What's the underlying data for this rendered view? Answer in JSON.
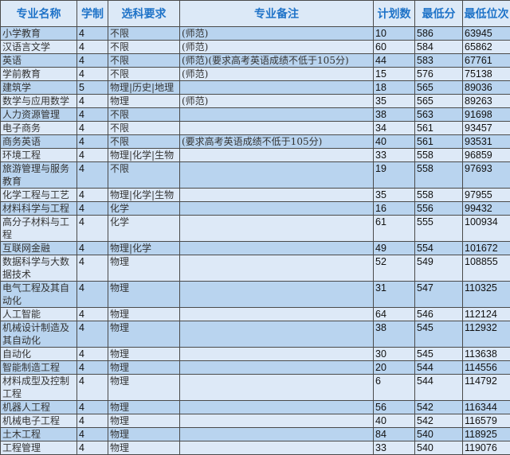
{
  "headers": [
    "专业名称",
    "学制",
    "选科要求",
    "专业备注",
    "计划数",
    "最低分",
    "最低位次"
  ],
  "colors": {
    "header_text": "#1f73c8",
    "header_bg": "#dce9f7",
    "row_dark": "#b9d4ef",
    "row_light": "#dde9f7",
    "border": "#4a4a4a"
  },
  "rows": [
    {
      "name": "小学教育",
      "years": "4",
      "subjects": "不限",
      "note": "(师范)",
      "plan": "10",
      "min_score": "586",
      "min_rank": "63945"
    },
    {
      "name": "汉语言文学",
      "years": "4",
      "subjects": "不限",
      "note": "(师范)",
      "plan": "60",
      "min_score": "584",
      "min_rank": "65862"
    },
    {
      "name": "英语",
      "years": "4",
      "subjects": "不限",
      "note": "(师范)(要求高考英语成绩不低于105分)",
      "plan": "44",
      "min_score": "583",
      "min_rank": "67761"
    },
    {
      "name": "学前教育",
      "years": "4",
      "subjects": "不限",
      "note": "(师范)",
      "plan": "15",
      "min_score": "576",
      "min_rank": "75138"
    },
    {
      "name": "建筑学",
      "years": "5",
      "subjects": "物理|历史|地理",
      "note": "",
      "plan": "18",
      "min_score": "565",
      "min_rank": "89036"
    },
    {
      "name": "数学与应用数学",
      "years": "4",
      "subjects": "物理",
      "note": "(师范)",
      "plan": "35",
      "min_score": "565",
      "min_rank": "89263"
    },
    {
      "name": "人力资源管理",
      "years": "4",
      "subjects": "不限",
      "note": "",
      "plan": "38",
      "min_score": "563",
      "min_rank": "91698"
    },
    {
      "name": "电子商务",
      "years": "4",
      "subjects": "不限",
      "note": "",
      "plan": "34",
      "min_score": "561",
      "min_rank": "93457"
    },
    {
      "name": "商务英语",
      "years": "4",
      "subjects": "不限",
      "note": "(要求高考英语成绩不低于105分)",
      "plan": "40",
      "min_score": "561",
      "min_rank": "93531"
    },
    {
      "name": "环境工程",
      "years": "4",
      "subjects": "物理|化学|生物",
      "note": "",
      "plan": "33",
      "min_score": "558",
      "min_rank": "96859"
    },
    {
      "name": "旅游管理与服务教育",
      "years": "4",
      "subjects": "不限",
      "note": "",
      "plan": "19",
      "min_score": "558",
      "min_rank": "97693"
    },
    {
      "name": "化学工程与工艺",
      "years": "4",
      "subjects": "物理|化学|生物",
      "note": "",
      "plan": "35",
      "min_score": "558",
      "min_rank": "97955"
    },
    {
      "name": "材料科学与工程",
      "years": "4",
      "subjects": "化学",
      "note": "",
      "plan": "16",
      "min_score": "556",
      "min_rank": "99432"
    },
    {
      "name": "高分子材料与工程",
      "years": "4",
      "subjects": "化学",
      "note": "",
      "plan": "61",
      "min_score": "555",
      "min_rank": "100934"
    },
    {
      "name": "互联网金融",
      "years": "4",
      "subjects": "物理|化学",
      "note": "",
      "plan": "49",
      "min_score": "554",
      "min_rank": "101672"
    },
    {
      "name": "数据科学与大数据技术",
      "years": "4",
      "subjects": "物理",
      "note": "",
      "plan": "52",
      "min_score": "549",
      "min_rank": "108855"
    },
    {
      "name": "电气工程及其自动化",
      "years": "4",
      "subjects": "物理",
      "note": "",
      "plan": "31",
      "min_score": "547",
      "min_rank": "110325"
    },
    {
      "name": "人工智能",
      "years": "4",
      "subjects": "物理",
      "note": "",
      "plan": "64",
      "min_score": "546",
      "min_rank": "112124"
    },
    {
      "name": "机械设计制造及其自动化",
      "years": "4",
      "subjects": "物理",
      "note": "",
      "plan": "38",
      "min_score": "545",
      "min_rank": "112932"
    },
    {
      "name": "自动化",
      "years": "4",
      "subjects": "物理",
      "note": "",
      "plan": "30",
      "min_score": "545",
      "min_rank": "113638"
    },
    {
      "name": "智能制造工程",
      "years": "4",
      "subjects": "物理",
      "note": "",
      "plan": "20",
      "min_score": "544",
      "min_rank": "114556"
    },
    {
      "name": "材料成型及控制工程",
      "years": "4",
      "subjects": "物理",
      "note": "",
      "plan": "6",
      "min_score": "544",
      "min_rank": "114792"
    },
    {
      "name": "机器人工程",
      "years": "4",
      "subjects": "物理",
      "note": "",
      "plan": "56",
      "min_score": "542",
      "min_rank": "116344"
    },
    {
      "name": "机械电子工程",
      "years": "4",
      "subjects": "物理",
      "note": "",
      "plan": "40",
      "min_score": "542",
      "min_rank": "116579"
    },
    {
      "name": "土木工程",
      "years": "4",
      "subjects": "物理",
      "note": "",
      "plan": "84",
      "min_score": "540",
      "min_rank": "118925"
    },
    {
      "name": "工程管理",
      "years": "4",
      "subjects": "物理",
      "note": "",
      "plan": "33",
      "min_score": "540",
      "min_rank": "119076"
    }
  ]
}
